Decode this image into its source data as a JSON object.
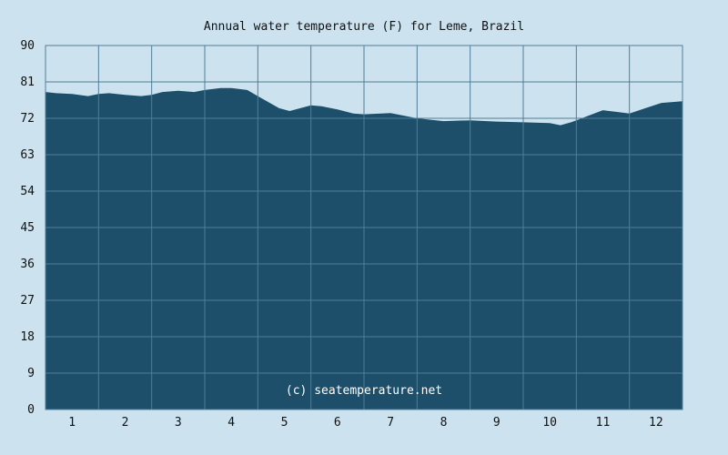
{
  "chart_data": {
    "type": "area",
    "title": "Annual water temperature (F) for Leme, Brazil",
    "watermark": "(c) seatemperature.net",
    "xlabel": "",
    "ylabel": "",
    "ylim": [
      0,
      90
    ],
    "yticks": [
      0,
      9,
      18,
      27,
      36,
      45,
      54,
      63,
      72,
      81,
      90
    ],
    "month_labels": [
      "1",
      "2",
      "3",
      "4",
      "5",
      "6",
      "7",
      "8",
      "9",
      "10",
      "11",
      "12"
    ],
    "grid": true,
    "colors": {
      "fill": "#1d4f6b",
      "grid": "#4f7d97",
      "background": "#cce3ef"
    },
    "series": [
      {
        "x": [
          0,
          0.2,
          0.5,
          0.8,
          1.0,
          1.2,
          1.5,
          1.8,
          2.0,
          2.2,
          2.5,
          2.8,
          3.0,
          3.3,
          3.5,
          3.8,
          4.0,
          4.2,
          4.4,
          4.6,
          4.8,
          5.0,
          5.2,
          5.5,
          5.8,
          6.0,
          6.5,
          7.0,
          7.5,
          8.0,
          8.5,
          9.0,
          9.5,
          9.7,
          9.9,
          10.2,
          10.5,
          10.8,
          11.0,
          11.3,
          11.6,
          12.0
        ],
        "y": [
          78.5,
          78.2,
          78.0,
          77.5,
          78.0,
          78.2,
          77.8,
          77.5,
          77.8,
          78.5,
          78.8,
          78.5,
          79.0,
          79.5,
          79.5,
          79.0,
          77.5,
          76.0,
          74.5,
          73.8,
          74.5,
          75.2,
          75.0,
          74.2,
          73.2,
          73.0,
          73.3,
          72.0,
          71.3,
          71.5,
          71.2,
          71.0,
          70.8,
          70.3,
          71.0,
          72.5,
          74.0,
          73.5,
          73.2,
          74.5,
          75.8,
          76.2
        ]
      }
    ]
  }
}
